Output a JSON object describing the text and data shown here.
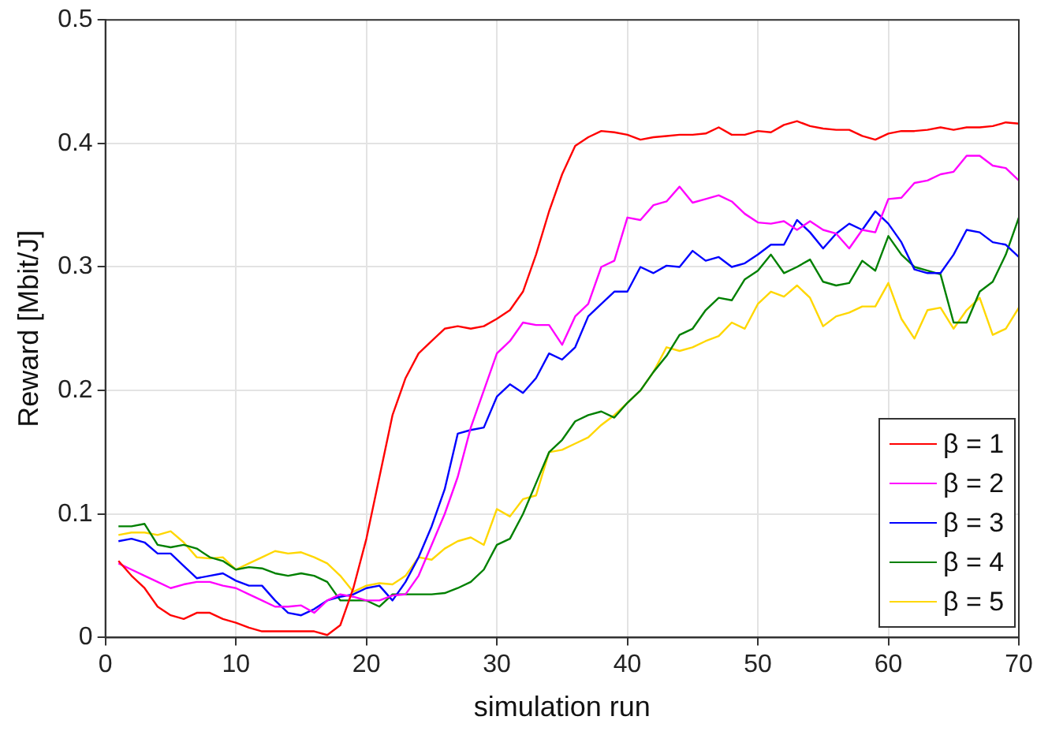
{
  "chart_data": {
    "type": "line",
    "xlabel": "simulation run",
    "ylabel": "Reward [Mbit/J]",
    "x": [
      1,
      2,
      3,
      4,
      5,
      6,
      7,
      8,
      9,
      10,
      11,
      12,
      13,
      14,
      15,
      16,
      17,
      18,
      19,
      20,
      21,
      22,
      23,
      24,
      25,
      26,
      27,
      28,
      29,
      30,
      31,
      32,
      33,
      34,
      35,
      36,
      37,
      38,
      39,
      40,
      41,
      42,
      43,
      44,
      45,
      46,
      47,
      48,
      49,
      50,
      51,
      52,
      53,
      54,
      55,
      56,
      57,
      58,
      59,
      60,
      61,
      62,
      63,
      64,
      65,
      66,
      67,
      68,
      69,
      70
    ],
    "xlim": [
      0,
      70
    ],
    "xticks": [
      0,
      10,
      20,
      30,
      40,
      50,
      60,
      70
    ],
    "ylim": [
      0,
      0.5
    ],
    "yticks": [
      0,
      0.1,
      0.2,
      0.3,
      0.4,
      0.5
    ],
    "grid": true,
    "legend": "bottom right",
    "marker": "none",
    "line_style": "solid",
    "series": [
      {
        "name": "β = 1",
        "color": "#ff0000",
        "values": [
          0.062,
          0.05,
          0.04,
          0.025,
          0.018,
          0.015,
          0.02,
          0.02,
          0.015,
          0.012,
          0.008,
          0.005,
          0.005,
          0.005,
          0.005,
          0.005,
          0.002,
          0.01,
          0.04,
          0.08,
          0.13,
          0.18,
          0.21,
          0.23,
          0.24,
          0.25,
          0.252,
          0.25,
          0.252,
          0.258,
          0.265,
          0.28,
          0.31,
          0.345,
          0.375,
          0.398,
          0.405,
          0.41,
          0.409,
          0.407,
          0.403,
          0.405,
          0.406,
          0.407,
          0.407,
          0.408,
          0.413,
          0.407,
          0.407,
          0.41,
          0.409,
          0.415,
          0.418,
          0.414,
          0.412,
          0.411,
          0.411,
          0.406,
          0.403,
          0.408,
          0.41,
          0.41,
          0.411,
          0.413,
          0.411,
          0.413,
          0.413,
          0.414,
          0.417,
          0.416
        ]
      },
      {
        "name": "β = 2",
        "color": "#ff00ff",
        "values": [
          0.06,
          0.055,
          0.05,
          0.045,
          0.04,
          0.043,
          0.045,
          0.045,
          0.042,
          0.04,
          0.035,
          0.03,
          0.025,
          0.025,
          0.026,
          0.02,
          0.03,
          0.035,
          0.033,
          0.03,
          0.03,
          0.034,
          0.035,
          0.05,
          0.075,
          0.1,
          0.13,
          0.17,
          0.2,
          0.23,
          0.24,
          0.255,
          0.253,
          0.253,
          0.237,
          0.26,
          0.27,
          0.3,
          0.305,
          0.34,
          0.338,
          0.35,
          0.353,
          0.365,
          0.352,
          0.355,
          0.358,
          0.353,
          0.343,
          0.336,
          0.335,
          0.337,
          0.33,
          0.337,
          0.33,
          0.327,
          0.315,
          0.33,
          0.328,
          0.355,
          0.356,
          0.368,
          0.37,
          0.375,
          0.377,
          0.39,
          0.39,
          0.382,
          0.38,
          0.37
        ]
      },
      {
        "name": "β = 3",
        "color": "#0000ff",
        "values": [
          0.078,
          0.08,
          0.077,
          0.068,
          0.068,
          0.058,
          0.048,
          0.05,
          0.052,
          0.046,
          0.042,
          0.042,
          0.03,
          0.02,
          0.018,
          0.023,
          0.03,
          0.033,
          0.035,
          0.04,
          0.042,
          0.03,
          0.045,
          0.065,
          0.09,
          0.12,
          0.165,
          0.168,
          0.17,
          0.195,
          0.205,
          0.198,
          0.21,
          0.23,
          0.225,
          0.235,
          0.26,
          0.27,
          0.28,
          0.28,
          0.3,
          0.295,
          0.301,
          0.3,
          0.313,
          0.305,
          0.308,
          0.3,
          0.303,
          0.31,
          0.318,
          0.318,
          0.338,
          0.328,
          0.315,
          0.327,
          0.335,
          0.33,
          0.345,
          0.335,
          0.32,
          0.298,
          0.295,
          0.295,
          0.31,
          0.33,
          0.328,
          0.32,
          0.318,
          0.308
        ]
      },
      {
        "name": "β = 4",
        "color": "#008000",
        "values": [
          0.09,
          0.09,
          0.092,
          0.075,
          0.073,
          0.075,
          0.072,
          0.065,
          0.062,
          0.055,
          0.057,
          0.056,
          0.052,
          0.05,
          0.052,
          0.05,
          0.045,
          0.03,
          0.03,
          0.03,
          0.025,
          0.035,
          0.035,
          0.035,
          0.035,
          0.036,
          0.04,
          0.045,
          0.055,
          0.075,
          0.08,
          0.1,
          0.125,
          0.15,
          0.16,
          0.175,
          0.18,
          0.183,
          0.178,
          0.19,
          0.2,
          0.215,
          0.228,
          0.245,
          0.25,
          0.265,
          0.275,
          0.273,
          0.29,
          0.297,
          0.31,
          0.295,
          0.3,
          0.306,
          0.288,
          0.285,
          0.287,
          0.305,
          0.297,
          0.325,
          0.31,
          0.3,
          0.297,
          0.294,
          0.255,
          0.255,
          0.28,
          0.288,
          0.31,
          0.34
        ]
      },
      {
        "name": "β = 5",
        "color": "#ffd700",
        "values": [
          0.083,
          0.085,
          0.085,
          0.083,
          0.086,
          0.077,
          0.065,
          0.064,
          0.065,
          0.055,
          0.06,
          0.065,
          0.07,
          0.068,
          0.069,
          0.065,
          0.06,
          0.05,
          0.037,
          0.042,
          0.044,
          0.043,
          0.05,
          0.065,
          0.063,
          0.072,
          0.078,
          0.081,
          0.075,
          0.104,
          0.098,
          0.112,
          0.115,
          0.15,
          0.152,
          0.157,
          0.162,
          0.172,
          0.18,
          0.19,
          0.2,
          0.215,
          0.235,
          0.232,
          0.235,
          0.24,
          0.244,
          0.255,
          0.25,
          0.27,
          0.28,
          0.276,
          0.285,
          0.275,
          0.252,
          0.26,
          0.263,
          0.268,
          0.268,
          0.287,
          0.258,
          0.242,
          0.265,
          0.267,
          0.25,
          0.265,
          0.275,
          0.245,
          0.25,
          0.267
        ]
      }
    ]
  }
}
